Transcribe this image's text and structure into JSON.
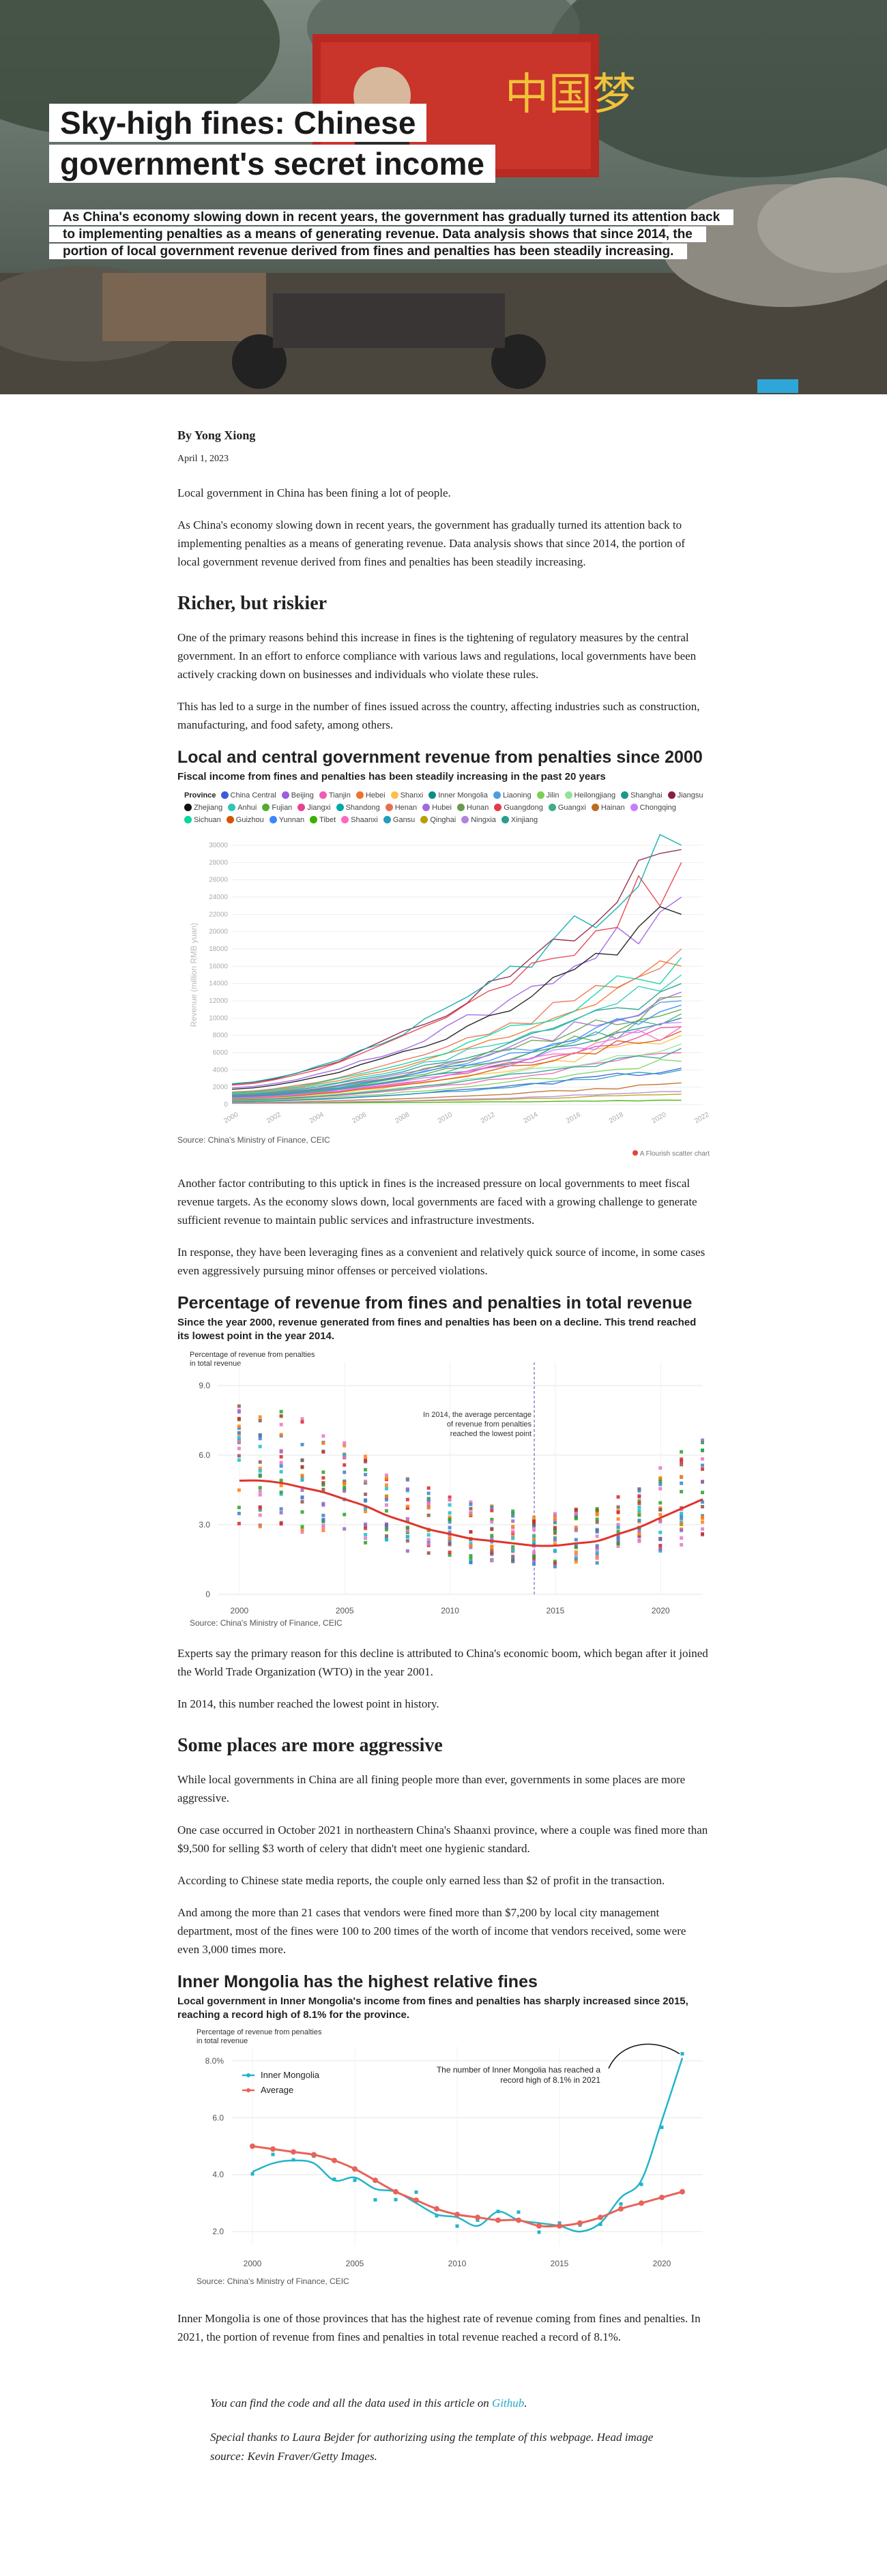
{
  "hero": {
    "title": "Sky-high fines: Chinese government's secret income",
    "subtitle": "As China's economy slowing down in recent years, the government has gradually turned its attention back to implementing penalties as a means of generating revenue. Data analysis shows that since 2014, the portion of local government revenue derived from fines and penalties has been steadily increasing.",
    "billboard_text": "中国梦"
  },
  "byline": "By Yong Xiong",
  "date": "April 1, 2023",
  "intro": [
    "Local government in China has been fining a lot of people.",
    "As China's economy slowing down in recent years, the government has gradually turned its attention back to implementing penalties as a means of generating revenue. Data analysis shows that since 2014, the portion of local government revenue derived from fines and penalties has been steadily increasing."
  ],
  "section1": {
    "heading": "Richer, but riskier",
    "paragraphs": [
      "One of the primary reasons behind this increase in fines is the tightening of regulatory measures by the central government. In an effort to enforce compliance with various laws and regulations, local governments have been actively cracking down on businesses and individuals who violate these rules.",
      "This has led to a surge in the number of fines issued across the country, affecting industries such as construction, manufacturing, and food safety, among others."
    ]
  },
  "chart1": {
    "title": "Local and central government revenue from penalties since 2000",
    "subtitle": "Fiscal income from fines and penalties has been steadily increasing in the past 20 years",
    "legend_title": "Province",
    "source": "Source: China's Ministry of Finance, CEIC",
    "credit": "A Flourish scatter chart"
  },
  "section2": {
    "paragraphs": [
      "Another factor contributing to this uptick in fines is the increased pressure on local governments to meet fiscal revenue targets. As the economy slows down, local governments are faced with a growing challenge to generate sufficient revenue to maintain public services and infrastructure investments.",
      "In response, they have been leveraging fines as a convenient and relatively quick source of income, in some cases even aggressively pursuing minor offenses or perceived violations."
    ]
  },
  "chart2": {
    "title": "Percentage of revenue from fines and penalties in total revenue",
    "subtitle": "Since the year 2000, revenue generated from fines and penalties has been on a decline. This trend reached its lowest point in the year 2014.",
    "ylabel_line1": "Percentage of revenue from penalties",
    "ylabel_line2": "in total revenue",
    "annotation_lines": [
      "In 2014, the average percentage",
      "of revenue from penalties",
      "reached the lowest point"
    ],
    "source": "Source: China's Ministry of Finance, CEIC"
  },
  "section3": {
    "paragraphs": [
      "Experts say the primary reason for this decline is attributed to China's economic boom, which began after it joined the World Trade Organization (WTO) in the year 2001.",
      "In 2014, this number reached the lowest point in history."
    ]
  },
  "section4": {
    "heading": "Some places are more aggressive",
    "paragraphs": [
      "While local governments in China are all fining people more than ever, governments in some places are more aggressive.",
      "One case occurred in October 2021 in northeastern China's Shaanxi province, where a couple was fined more than $9,500 for selling $3 worth of celery that didn't meet one hygienic standard.",
      "According to Chinese state media reports, the couple only earned less than $2 of profit in the transaction.",
      "And among the more than 21 cases that vendors were fined more than $7,200 by local city management department, most of the fines were 100 to 200 times of the worth of income that vendors received, some were even 3,000 times more."
    ]
  },
  "chart3": {
    "title": "Inner Mongolia has the highest relative fines",
    "subtitle": "Local government in Inner Mongolia's income from fines and penalties has sharply increased since 2015, reaching a record high of 8.1% for the province.",
    "ylabel_line1": "Percentage of revenue from penalties",
    "ylabel_line2": "in total revenue",
    "annotation_lines": [
      "The number of Inner Mongolia has reached a",
      "record high of 8.1% in 2021"
    ],
    "source": "Source: China's Ministry of Finance, CEIC"
  },
  "section5": {
    "paragraphs": [
      "Inner Mongolia is one of those provinces that has the highest rate of revenue coming from fines and penalties. In 2021, the portion of revenue from fines and penalties in total revenue reached a record of 8.1%."
    ]
  },
  "footer": {
    "code_prefix": "You can find the code and all the data used in this article on ",
    "code_link": "Github",
    "code_suffix": ".",
    "thanks": "Special thanks to Laura Bejder for authorizing using the template of this webpage. Head image source: Kevin Fraver/Getty Images."
  },
  "chart_data": [
    {
      "type": "line",
      "title": "Local and central government revenue from penalties since 2000",
      "ylabel": "Revenue (million RMB yuan)",
      "ylim": [
        0,
        30000
      ],
      "yticks": [
        0,
        2000,
        4000,
        6000,
        8000,
        10000,
        12000,
        14000,
        16000,
        18000,
        20000,
        22000,
        24000,
        26000,
        28000,
        30000
      ],
      "xticks": [
        2000,
        2002,
        2004,
        2006,
        2008,
        2010,
        2012,
        2014,
        2016,
        2018,
        2020,
        2022
      ],
      "x": [
        2000,
        2001,
        2002,
        2003,
        2004,
        2005,
        2006,
        2007,
        2008,
        2009,
        2010,
        2011,
        2012,
        2013,
        2014,
        2015,
        2016,
        2017,
        2018,
        2019,
        2020,
        2021
      ],
      "legend_position": "top",
      "series": [
        {
          "name": "China Central",
          "color": "#3b5bdb",
          "end": 4200
        },
        {
          "name": "Beijing",
          "color": "#9b5de5",
          "end": 24000
        },
        {
          "name": "Tianjin",
          "color": "#f15bb5",
          "end": 6000
        },
        {
          "name": "Hebei",
          "color": "#f3722c",
          "end": 16000
        },
        {
          "name": "Shanxi",
          "color": "#fcbf49",
          "end": 8000
        },
        {
          "name": "Inner Mongolia",
          "color": "#0f8b8d",
          "end": 10000
        },
        {
          "name": "Liaoning",
          "color": "#4d9de0",
          "end": 12000
        },
        {
          "name": "Jilin",
          "color": "#7ad151",
          "end": 5000
        },
        {
          "name": "Heilongjiang",
          "color": "#90e39a",
          "end": 7000
        },
        {
          "name": "Shanghai",
          "color": "#1b998b",
          "end": 14000
        },
        {
          "name": "Jiangsu",
          "color": "#8b1e3f",
          "end": 29500
        },
        {
          "name": "Zhejiang",
          "color": "#111111",
          "end": 22000
        },
        {
          "name": "Anhui",
          "color": "#2ec4b6",
          "end": 15000
        },
        {
          "name": "Fujian",
          "color": "#56ab2f",
          "end": 11000
        },
        {
          "name": "Jiangxi",
          "color": "#e84393",
          "end": 9000
        },
        {
          "name": "Shandong",
          "color": "#00a8a8",
          "end": 30000
        },
        {
          "name": "Henan",
          "color": "#e76f51",
          "end": 18000
        },
        {
          "name": "Hubei",
          "color": "#a06cd5",
          "end": 13000
        },
        {
          "name": "Hunan",
          "color": "#6a994e",
          "end": 12500
        },
        {
          "name": "Guangdong",
          "color": "#e63946",
          "end": 28000
        },
        {
          "name": "Guangxi",
          "color": "#43aa8b",
          "end": 10500
        },
        {
          "name": "Hainan",
          "color": "#bc6c25",
          "end": 2500
        },
        {
          "name": "Chongqing",
          "color": "#c77dff",
          "end": 9500
        },
        {
          "name": "Sichuan",
          "color": "#06d6a0",
          "end": 17000
        },
        {
          "name": "Guizhou",
          "color": "#d35400",
          "end": 8500
        },
        {
          "name": "Yunnan",
          "color": "#3a86ff",
          "end": 11500
        },
        {
          "name": "Tibet",
          "color": "#38b000",
          "end": 500
        },
        {
          "name": "Shaanxi",
          "color": "#ff66c4",
          "end": 9000
        },
        {
          "name": "Gansu",
          "color": "#219ebc",
          "end": 4000
        },
        {
          "name": "Qinghai",
          "color": "#b5a000",
          "end": 1200
        },
        {
          "name": "Ningxia",
          "color": "#b185db",
          "end": 1500
        },
        {
          "name": "Xinjiang",
          "color": "#2a9d8f",
          "end": 6500
        }
      ]
    },
    {
      "type": "scatter",
      "title": "Percentage of revenue from fines and penalties in total revenue",
      "ylim": [
        0,
        10
      ],
      "yticks": [
        0,
        3.0,
        6.0,
        9.0
      ],
      "xticks": [
        2000,
        2005,
        2010,
        2015,
        2020
      ],
      "xlim": [
        1999,
        2022
      ],
      "highlight_year": 2014,
      "average": {
        "x": [
          2000,
          2001,
          2002,
          2003,
          2004,
          2005,
          2006,
          2007,
          2008,
          2009,
          2010,
          2011,
          2012,
          2013,
          2014,
          2015,
          2016,
          2017,
          2018,
          2019,
          2020,
          2021,
          2022
        ],
        "y": [
          4.9,
          4.9,
          4.8,
          4.6,
          4.4,
          4.1,
          3.8,
          3.4,
          3.1,
          2.8,
          2.6,
          2.4,
          2.3,
          2.2,
          2.1,
          2.1,
          2.2,
          2.3,
          2.6,
          2.9,
          3.3,
          3.7,
          4.1
        ]
      }
    },
    {
      "type": "line",
      "title": "Inner Mongolia has the highest relative fines",
      "ylim": [
        1.5,
        8.5
      ],
      "yticks": [
        2.0,
        4.0,
        6.0,
        8.0
      ],
      "xticks": [
        2000,
        2005,
        2010,
        2015,
        2020
      ],
      "xlim": [
        1999,
        2022
      ],
      "series": [
        {
          "name": "Inner Mongolia",
          "color": "#22b5c9",
          "x": [
            2000,
            2001,
            2002,
            2003,
            2004,
            2005,
            2006,
            2007,
            2008,
            2009,
            2010,
            2011,
            2012,
            2013,
            2014,
            2015,
            2016,
            2017,
            2018,
            2019,
            2020,
            2021
          ],
          "y": [
            4.1,
            4.4,
            4.5,
            4.4,
            3.8,
            3.9,
            3.5,
            3.4,
            3.0,
            2.6,
            2.5,
            2.2,
            2.7,
            2.4,
            2.3,
            2.2,
            2.0,
            2.3,
            3.2,
            3.8,
            5.9,
            8.1
          ]
        },
        {
          "name": "Average",
          "color": "#e8635a",
          "x": [
            2000,
            2001,
            2002,
            2003,
            2004,
            2005,
            2006,
            2007,
            2008,
            2009,
            2010,
            2011,
            2012,
            2013,
            2014,
            2015,
            2016,
            2017,
            2018,
            2019,
            2020,
            2021
          ],
          "y": [
            5.0,
            4.9,
            4.8,
            4.7,
            4.5,
            4.2,
            3.8,
            3.4,
            3.1,
            2.8,
            2.6,
            2.5,
            2.4,
            2.4,
            2.2,
            2.2,
            2.3,
            2.5,
            2.8,
            3.0,
            3.2,
            3.4
          ]
        }
      ],
      "annotation_target": {
        "x": 2021,
        "y": 8.1
      }
    }
  ]
}
